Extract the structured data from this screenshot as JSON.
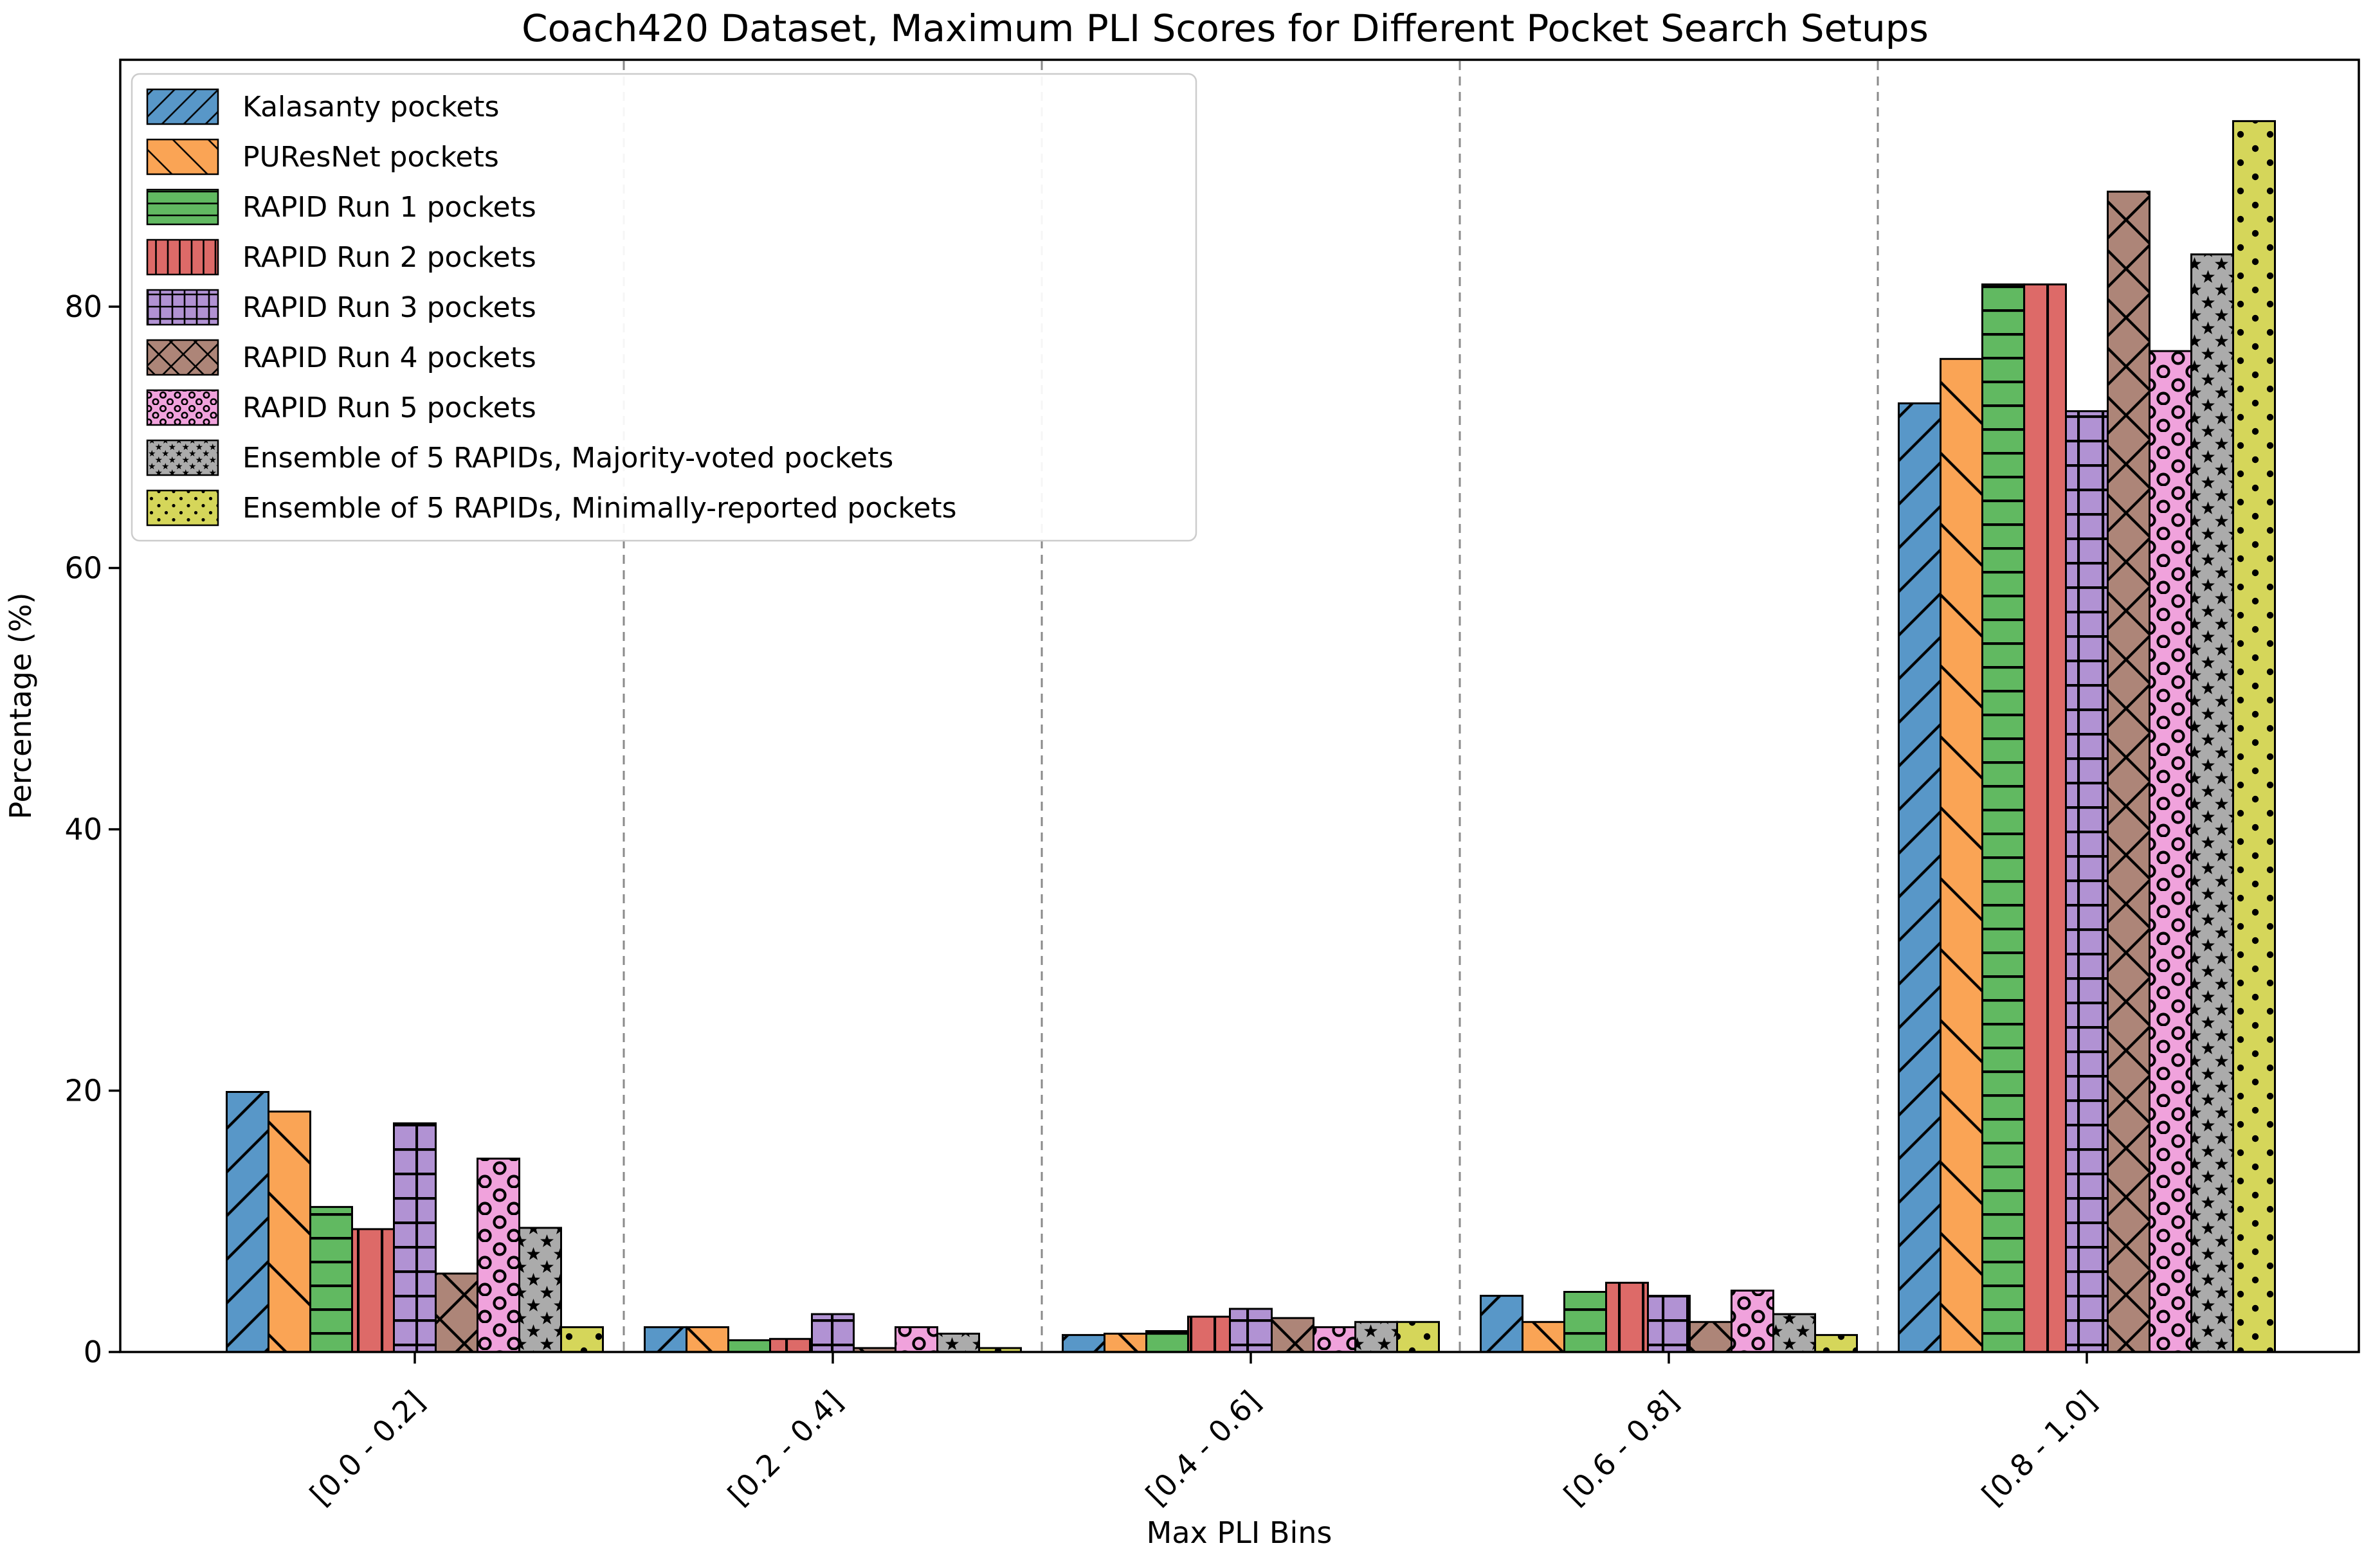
{
  "chart_data": {
    "type": "bar",
    "title": "Coach420 Dataset, Maximum PLI Scores for Different Pocket Search Setups",
    "xlabel": "Max PLI Bins",
    "ylabel": "Percentage (%)",
    "categories": [
      "[0.0 - 0.2]",
      "[0.2 - 0.4]",
      "[0.4 - 0.6]",
      "[0.6 - 0.8]",
      "[0.8 - 1.0]"
    ],
    "yticks": [
      0,
      20,
      40,
      60,
      80
    ],
    "ylim": [
      0,
      98.9
    ],
    "grid": "dashed vertical separators between bins",
    "legend_position": "upper left",
    "bar_edge_color": "#000000",
    "separator_color": "#8a8a8a",
    "legend_border_color": "#cccccc",
    "series": [
      {
        "name": "Kalasanty pockets",
        "color": "#5897C8",
        "hatch": "diagonal-forward",
        "values": [
          19.9,
          1.9,
          1.3,
          4.3,
          72.6
        ]
      },
      {
        "name": "PUResNet pockets",
        "color": "#FAA455",
        "hatch": "diagonal-back",
        "values": [
          18.4,
          1.9,
          1.4,
          2.3,
          76.0
        ]
      },
      {
        "name": "RAPID Run 1 pockets",
        "color": "#61B961",
        "hatch": "horizontal",
        "values": [
          11.1,
          0.9,
          1.6,
          4.6,
          81.7
        ]
      },
      {
        "name": "RAPID Run 2 pockets",
        "color": "#DD6A68",
        "hatch": "vertical",
        "values": [
          9.4,
          1.0,
          2.7,
          5.3,
          81.7
        ]
      },
      {
        "name": "RAPID Run 3 pockets",
        "color": "#B192D3",
        "hatch": "grid",
        "values": [
          17.5,
          2.9,
          3.3,
          4.3,
          72.0
        ]
      },
      {
        "name": "RAPID Run 4 pockets",
        "color": "#AD8578",
        "hatch": "cross",
        "values": [
          6.0,
          0.3,
          2.6,
          2.3,
          88.8
        ]
      },
      {
        "name": "RAPID Run 5 pockets",
        "color": "#F0A2DC",
        "hatch": "circle",
        "values": [
          14.8,
          1.9,
          1.9,
          4.7,
          76.6
        ]
      },
      {
        "name": "Ensemble of 5 RAPIDs, Majority-voted pockets",
        "color": "#ABABAB",
        "hatch": "star",
        "values": [
          9.5,
          1.4,
          2.3,
          2.9,
          84.0
        ]
      },
      {
        "name": "Ensemble of 5 RAPIDs, Minimally-reported pockets",
        "color": "#D5D65A",
        "hatch": "dot",
        "values": [
          1.9,
          0.3,
          2.3,
          1.3,
          94.2
        ]
      }
    ]
  }
}
